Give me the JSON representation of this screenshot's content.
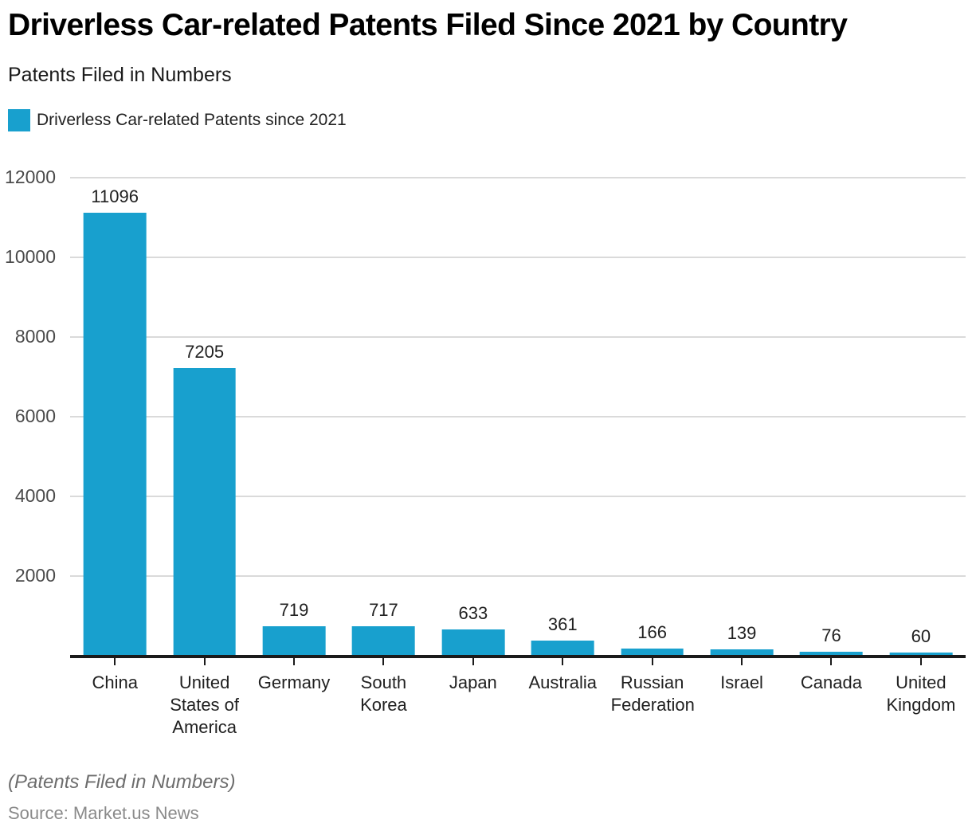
{
  "chart_data": {
    "type": "bar",
    "title": "Driverless Car-related Patents Filed Since 2021 by Country",
    "subtitle": "Patents Filed in Numbers",
    "legend": [
      "Driverless Car-related Patents since 2021"
    ],
    "legend_position": "top-left",
    "categories": [
      "China",
      "United States of America",
      "Germany",
      "South Korea",
      "Japan",
      "Australia",
      "Russian Federation",
      "Israel",
      "Canada",
      "United Kingdom"
    ],
    "values": [
      11096,
      7205,
      719,
      717,
      633,
      361,
      166,
      139,
      76,
      60
    ],
    "xlabel": "",
    "ylabel": "",
    "ylim": [
      0,
      12000
    ],
    "yticks": [
      2000,
      4000,
      6000,
      8000,
      10000,
      12000
    ],
    "grid": true,
    "bar_color": "#18a0ce",
    "gridline_color": "#dadada",
    "axis_color": "#1a1a1a"
  },
  "footer": {
    "note": "(Patents Filed in Numbers)",
    "source": "Source: Market.us News"
  }
}
